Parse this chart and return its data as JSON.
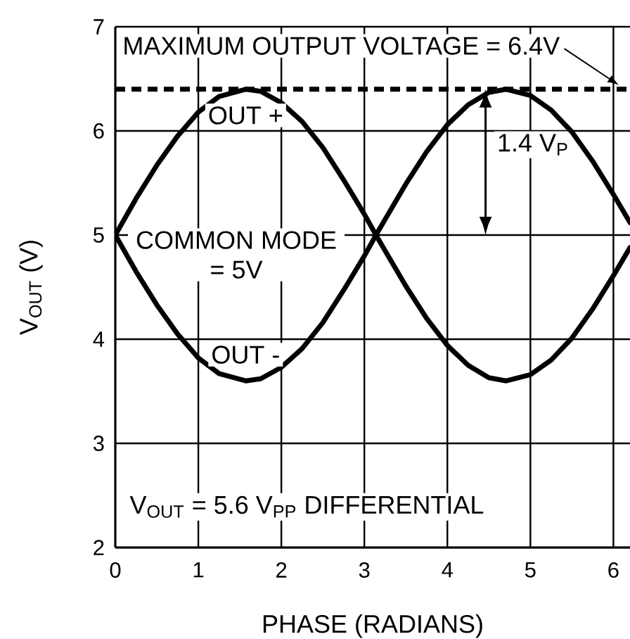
{
  "chart_data": {
    "type": "line",
    "xlabel": "PHASE (RADIANS)",
    "ylabel": "V$_{OUT}$ (V)",
    "annotations": [
      "COMMON MODE = 5V",
      {
        "text": "1.4 V$_{P}$",
        "x": 4.46,
        "y": 6.4
      },
      "V$_{OUT}$ = 5.6 V$_{PP}$ DIFFERENTIAL"
    ],
    "x": [
      0,
      0.25,
      0.5,
      0.75,
      1,
      1.25,
      1.57,
      1.75,
      2,
      2.25,
      2.5,
      2.75,
      3,
      3.14,
      3.25,
      3.5,
      3.75,
      4,
      4.25,
      4.5,
      4.71,
      5,
      5.25,
      5.5,
      5.75,
      6,
      6.2
    ],
    "series": [
      {
        "name": "OUT +",
        "color": "#000000",
        "values": [
          5.0,
          5.35,
          5.67,
          5.95,
          6.18,
          6.33,
          6.4,
          6.38,
          6.27,
          6.09,
          5.84,
          5.53,
          5.2,
          5.0,
          4.85,
          4.51,
          4.2,
          3.94,
          3.75,
          3.63,
          3.6,
          3.66,
          3.8,
          4.01,
          4.29,
          4.61,
          4.88
        ]
      },
      {
        "name": "OUT -",
        "color": "#000000",
        "values": [
          5.0,
          4.65,
          4.33,
          4.05,
          3.82,
          3.67,
          3.6,
          3.62,
          3.73,
          3.91,
          4.16,
          4.47,
          4.8,
          5.0,
          5.15,
          5.49,
          5.8,
          6.06,
          6.25,
          6.37,
          6.4,
          6.34,
          6.2,
          5.99,
          5.71,
          5.39,
          5.12
        ]
      }
    ],
    "xlim": [
      0,
      6.2
    ],
    "ylim": [
      2,
      7
    ],
    "xticks": [
      0,
      1,
      2,
      3,
      4,
      5,
      6
    ],
    "yticks": [
      2,
      3,
      4,
      5,
      6,
      7
    ],
    "ref_lines": [
      {
        "axis": "y",
        "value": 6.4,
        "label": "MAXIMUM OUTPUT VOLTAGE = 6.4V",
        "color": "#000000",
        "line_style": "dashed"
      }
    ],
    "grid": true,
    "legend": false,
    "line_style": "solid"
  }
}
